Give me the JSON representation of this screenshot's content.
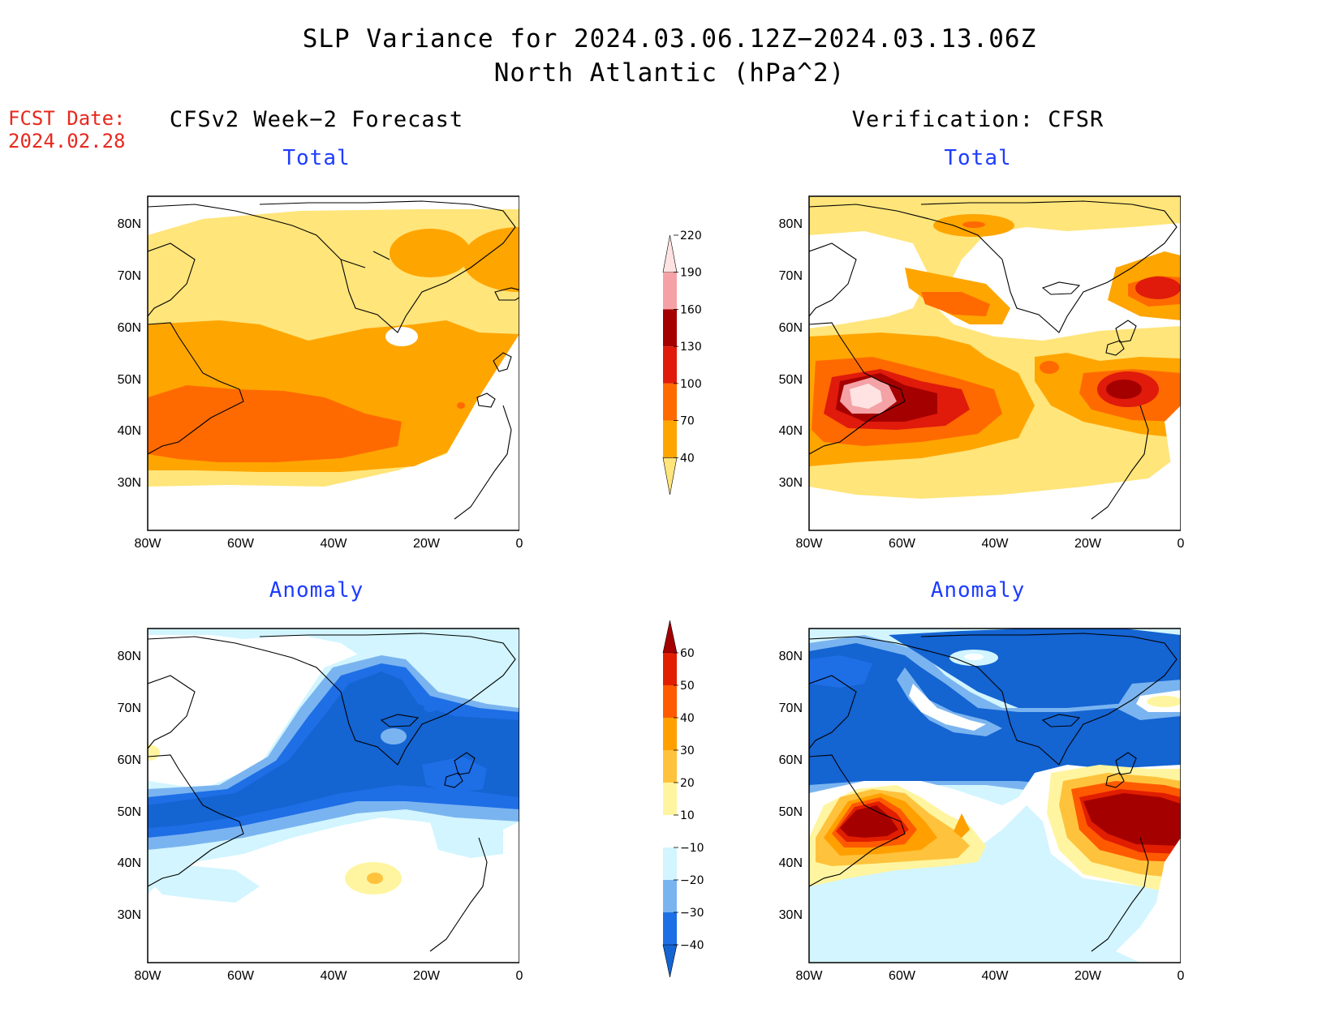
{
  "header": {
    "title_line1": "SLP Variance for 2024.03.06.12Z−2024.03.13.06Z",
    "title_line2": "North Atlantic (hPa^2)",
    "fcst_label": "FCST Date:",
    "fcst_date": "2024.02.28"
  },
  "columns": {
    "left": "CFSv2 Week−2 Forecast",
    "right": "Verification: CFSR"
  },
  "panels": {
    "total": "Total",
    "anomaly": "Anomaly"
  },
  "axes": {
    "lat_labels": [
      "80N",
      "70N",
      "60N",
      "50N",
      "40N",
      "30N"
    ],
    "lon_labels": [
      "80W",
      "60W",
      "40W",
      "20W",
      "0"
    ]
  },
  "colorbars": {
    "total": {
      "levels": [
        "40",
        "70",
        "100",
        "130",
        "160",
        "190",
        "220"
      ],
      "colors": [
        "#ffe57a",
        "#ffa500",
        "#ff6a00",
        "#e01b0b",
        "#a50000",
        "#f4a2a6",
        "#ffe3e3"
      ]
    },
    "anomaly": {
      "levels": [
        "−40",
        "−30",
        "−20",
        "−10",
        "10",
        "20",
        "30",
        "40",
        "50",
        "60"
      ],
      "colors": [
        "#1464d2",
        "#1e6ee6",
        "#7ab4f0",
        "#d2f5ff",
        "#ffffff",
        "#fff5a0",
        "#ffc23c",
        "#ffa000",
        "#ff5a00",
        "#e11e00",
        "#a50000"
      ]
    }
  },
  "colors": {
    "title_red": "#e8281e",
    "subtitle_blue": "#1e3cff"
  }
}
